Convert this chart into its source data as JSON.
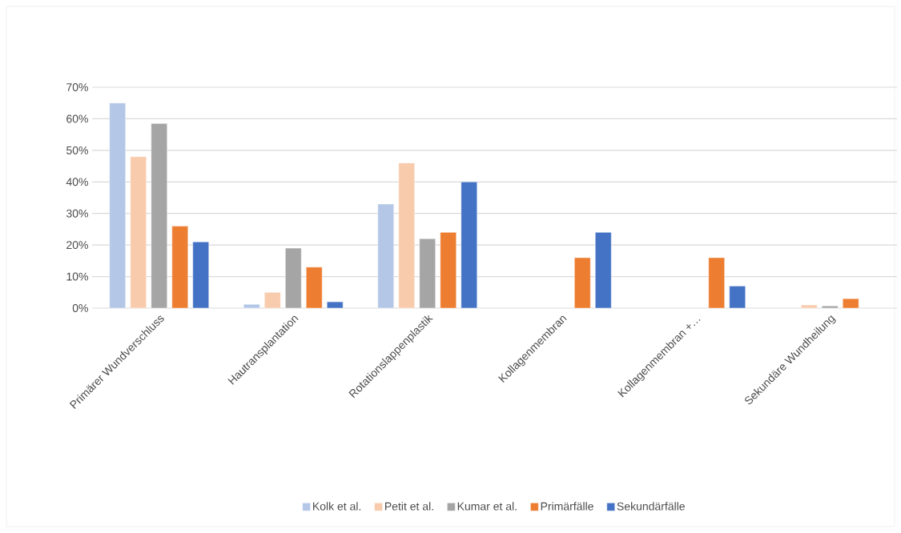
{
  "chart_data": {
    "type": "bar",
    "categories": [
      "Primärer Wundverschluss",
      "Hautransplantation",
      "Rotationslappenplastik",
      "Kollagenmembran",
      "Kollagenmembran +…",
      "Sekundäre Wundheilung"
    ],
    "series": [
      {
        "name": "Kolk et al.",
        "color": "#b4c7e7",
        "values": [
          65,
          1.2,
          33,
          null,
          null,
          null
        ]
      },
      {
        "name": "Petit et al.",
        "color": "#f8cbad",
        "values": [
          48,
          5,
          46,
          null,
          null,
          1
        ]
      },
      {
        "name": "Kumar et al.",
        "color": "#a5a5a5",
        "values": [
          58.5,
          19,
          22,
          null,
          null,
          0.7
        ]
      },
      {
        "name": "Primärfälle",
        "color": "#ed7d31",
        "values": [
          26,
          13,
          24,
          16,
          16,
          3
        ]
      },
      {
        "name": "Sekundärfälle",
        "color": "#4472c4",
        "values": [
          21,
          2,
          40,
          24,
          7,
          null
        ]
      }
    ],
    "ylim": [
      0,
      70
    ],
    "yticks": [
      {
        "value": 0,
        "label": "0%"
      },
      {
        "value": 10,
        "label": "10%"
      },
      {
        "value": 20,
        "label": "20%"
      },
      {
        "value": 30,
        "label": "30%"
      },
      {
        "value": 40,
        "label": "40%"
      },
      {
        "value": 50,
        "label": "50%"
      },
      {
        "value": 60,
        "label": "60%"
      },
      {
        "value": 70,
        "label": "70%"
      }
    ],
    "grid": "y",
    "legend": "bottom"
  }
}
